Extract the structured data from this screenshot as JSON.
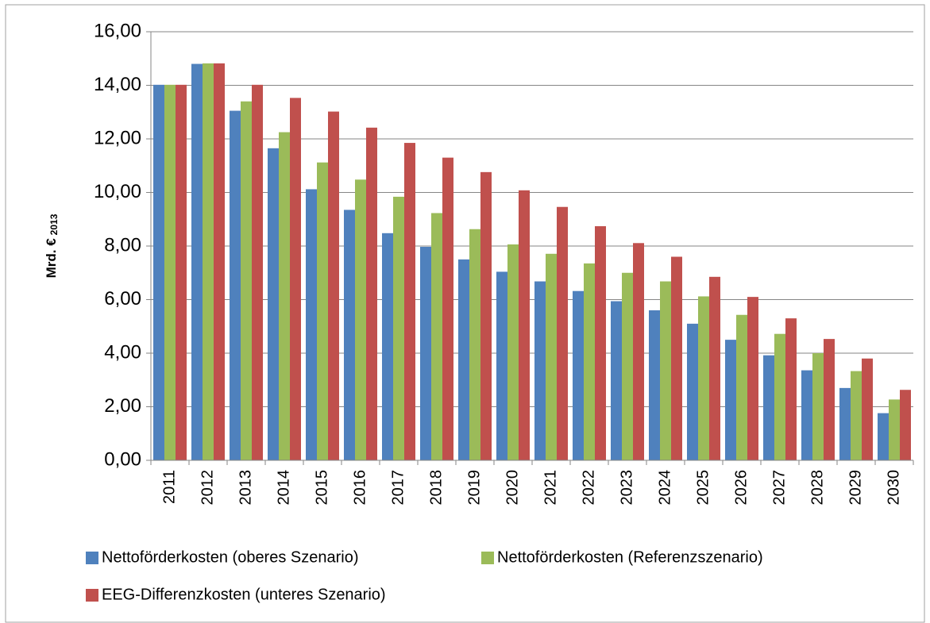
{
  "chart_data": {
    "type": "bar",
    "ylabel": "Mrd. €",
    "ylabel_sub": "2013",
    "categories": [
      "2011",
      "2012",
      "2013",
      "2014",
      "2015",
      "2016",
      "2017",
      "2018",
      "2019",
      "2020",
      "2021",
      "2022",
      "2023",
      "2024",
      "2025",
      "2026",
      "2027",
      "2028",
      "2029",
      "2030"
    ],
    "series": [
      {
        "name": "Nettoförderkosten (oberes Szenario)",
        "color": "#4f81bd",
        "values": [
          14.02,
          14.8,
          13.05,
          11.65,
          10.12,
          9.35,
          8.48,
          7.97,
          7.5,
          7.04,
          6.68,
          6.32,
          5.94,
          5.6,
          5.1,
          4.5,
          3.92,
          3.36,
          2.7,
          1.76
        ]
      },
      {
        "name": "Nettoförderkosten (Referenzszenario)",
        "color": "#9bbb59",
        "values": [
          14.02,
          14.82,
          13.4,
          12.25,
          11.12,
          10.48,
          9.84,
          9.23,
          8.63,
          8.06,
          7.71,
          7.35,
          7.0,
          6.68,
          6.12,
          5.43,
          4.72,
          4.0,
          3.33,
          2.27
        ]
      },
      {
        "name": "EEG-Differenzkosten (unteres Szenario)",
        "color": "#c0504d",
        "values": [
          14.02,
          14.82,
          14.02,
          13.53,
          13.02,
          12.42,
          11.85,
          11.3,
          10.76,
          10.08,
          9.46,
          8.74,
          8.11,
          7.6,
          6.85,
          6.1,
          5.3,
          4.53,
          3.8,
          2.63
        ]
      }
    ],
    "ylim": [
      0,
      16
    ],
    "yticks": [
      {
        "value": 0,
        "label": "0,00"
      },
      {
        "value": 2,
        "label": "2,00"
      },
      {
        "value": 4,
        "label": "4,00"
      },
      {
        "value": 6,
        "label": "6,00"
      },
      {
        "value": 8,
        "label": "8,00"
      },
      {
        "value": 10,
        "label": "10,00"
      },
      {
        "value": 12,
        "label": "12,00"
      },
      {
        "value": 14,
        "label": "14,00"
      },
      {
        "value": 16,
        "label": "16,00"
      }
    ],
    "grid": true
  }
}
